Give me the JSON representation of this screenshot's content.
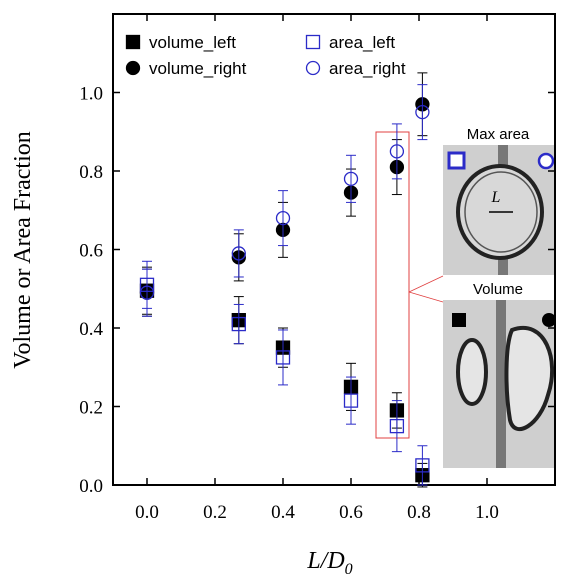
{
  "chart_data": {
    "type": "scatter",
    "y_label": "Volume or Area Fraction",
    "x_label": "L/D",
    "x_label_subscript": "0",
    "x": [
      0,
      0.27,
      0.4,
      0.6,
      0.735,
      0.81
    ],
    "series": [
      {
        "name": "volume_left",
        "color": "#000000",
        "marker": "square",
        "filled": true,
        "values": [
          0.495,
          0.42,
          0.35,
          0.25,
          0.19,
          0.025
        ],
        "errors": [
          0.06,
          0.06,
          0.05,
          0.06,
          0.045,
          0.03
        ]
      },
      {
        "name": "volume_right",
        "color": "#000000",
        "marker": "circle",
        "filled": true,
        "values": [
          0.49,
          0.58,
          0.65,
          0.745,
          0.81,
          0.97
        ],
        "errors": [
          0.06,
          0.06,
          0.07,
          0.06,
          0.07,
          0.08
        ]
      },
      {
        "name": "area_left",
        "color": "#2b2bc8",
        "marker": "square",
        "filled": false,
        "values": [
          0.51,
          0.41,
          0.325,
          0.215,
          0.15,
          0.05
        ],
        "errors": [
          0.06,
          0.05,
          0.07,
          0.06,
          0.065,
          0.05
        ]
      },
      {
        "name": "area_right",
        "color": "#2b2bc8",
        "marker": "circle",
        "filled": false,
        "values": [
          0.49,
          0.59,
          0.68,
          0.78,
          0.85,
          0.95
        ],
        "errors": [
          0.06,
          0.06,
          0.07,
          0.06,
          0.07,
          0.07
        ]
      }
    ],
    "xlim": [
      -0.1,
      1.2
    ],
    "ylim": [
      0,
      1.2
    ],
    "xticks": [
      {
        "value": 0,
        "label": "0.0"
      },
      {
        "value": 0.2,
        "label": "0.2"
      },
      {
        "value": 0.4,
        "label": "0.4"
      },
      {
        "value": 0.6,
        "label": "0.6"
      },
      {
        "value": 0.8,
        "label": "0.8"
      },
      {
        "value": 1,
        "label": "1.0"
      }
    ],
    "yticks": [
      {
        "value": 0,
        "label": "0.0"
      },
      {
        "value": 0.2,
        "label": "0.2"
      },
      {
        "value": 0.4,
        "label": "0.4"
      },
      {
        "value": 0.6,
        "label": "0.6"
      },
      {
        "value": 0.8,
        "label": "0.8"
      },
      {
        "value": 1,
        "label": "1.0"
      }
    ],
    "inset": {
      "top_label": "Max area",
      "bottom_label": "Volume",
      "length_label": "L"
    }
  }
}
